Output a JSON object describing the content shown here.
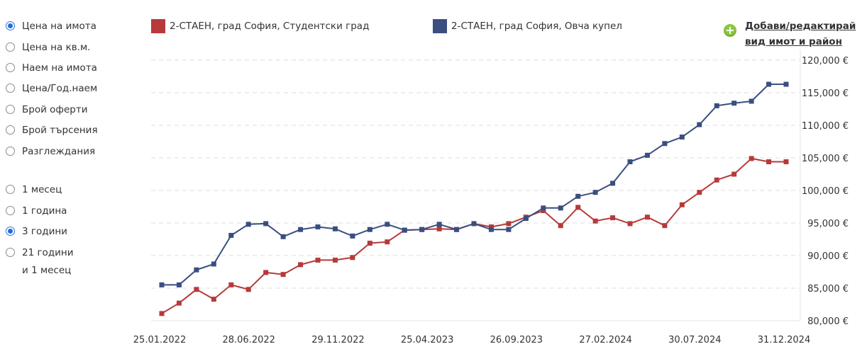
{
  "metric_options": [
    {
      "label": "Цена на имота",
      "checked": true
    },
    {
      "label": "Цена на кв.м.",
      "checked": false
    },
    {
      "label": "Наем на имота",
      "checked": false
    },
    {
      "label": "Цена/Год.наем",
      "checked": false
    },
    {
      "label": "Брой оферти",
      "checked": false
    },
    {
      "label": "Брой търсения",
      "checked": false
    },
    {
      "label": "Разглеждания",
      "checked": false
    }
  ],
  "period_options": [
    {
      "label": "1 месец",
      "checked": false
    },
    {
      "label": "1 година",
      "checked": false
    },
    {
      "label": "3 години",
      "checked": true
    },
    {
      "label": "21 години",
      "label2": "и 1 месец",
      "checked": false
    }
  ],
  "add_link": {
    "line1": "Добави/редактирай",
    "line2": "вид имот и район"
  },
  "colors": {
    "series1": "#b63a3a",
    "series2": "#3a4e80",
    "add_icon": "#8cc63f",
    "grid": "#dddddd"
  },
  "chart_data": {
    "type": "line",
    "x_tick_labels": [
      "25.01.2022",
      "28.06.2022",
      "29.11.2022",
      "25.04.2023",
      "26.09.2023",
      "27.02.2024",
      "30.07.2024",
      "31.12.2024"
    ],
    "y_tick_labels": [
      "80,000 €",
      "85,000 €",
      "90,000 €",
      "95,000 €",
      "100,000 €",
      "105,000 €",
      "110,000 €",
      "115,000 €",
      "120,000 €"
    ],
    "ylim": [
      80000,
      120000
    ],
    "y_axis_position": "right",
    "grid": true,
    "legend_position": "top",
    "series": [
      {
        "name": "2-СТАЕН, град София, Студентски град",
        "color": "#b63a3a",
        "values": [
          81100,
          82700,
          84800,
          83300,
          85500,
          84800,
          87400,
          87100,
          88600,
          89300,
          89300,
          89700,
          91900,
          92100,
          93900,
          94000,
          94100,
          94000,
          94900,
          94400,
          94900,
          95900,
          96900,
          94600,
          97400,
          95300,
          95800,
          94900,
          95900,
          94600,
          97800,
          99700,
          101600,
          102500,
          104900,
          104400,
          104400
        ]
      },
      {
        "name": "2-СТАЕН, град София, Овча купел",
        "color": "#3a4e80",
        "values": [
          85500,
          85500,
          87800,
          88700,
          93100,
          94800,
          94900,
          92900,
          94000,
          94400,
          94100,
          93000,
          94000,
          94800,
          93900,
          94000,
          94800,
          94000,
          94900,
          94000,
          94000,
          95700,
          97300,
          97300,
          99100,
          99700,
          101100,
          104400,
          105400,
          107200,
          108200,
          110100,
          113000,
          113400,
          113700,
          116300,
          116300
        ]
      }
    ]
  }
}
